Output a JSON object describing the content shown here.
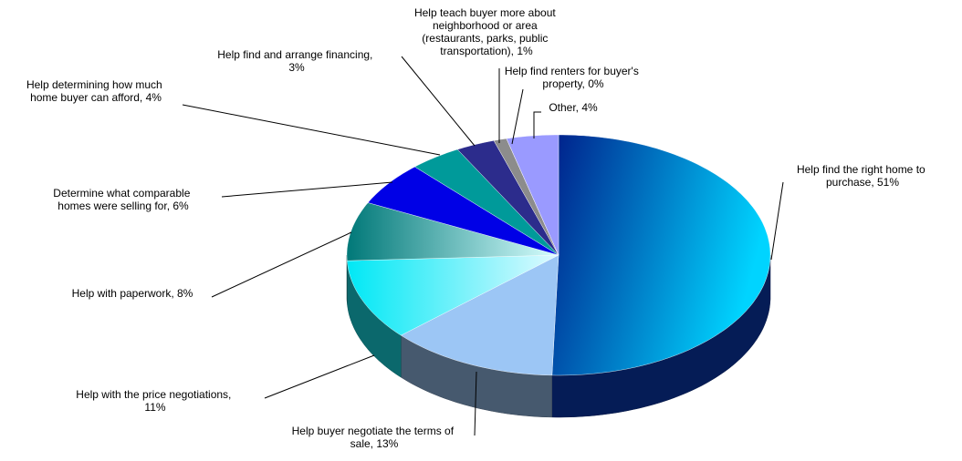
{
  "chart_data": {
    "type": "pie3d",
    "values": [
      51,
      13,
      11,
      8,
      6,
      4,
      3,
      1,
      0,
      4
    ],
    "value_labels": [
      "Help find the right home to purchase, 51%",
      "Help buyer negotiate the terms of sale, 13%",
      "Help with the price negotiations, 11%",
      "Help with paperwork, 8%",
      "Determine what comparable homes were selling for, 6%",
      "Help determining how much home buyer can afford, 4%",
      "Help find and arrange financing, 3%",
      "Help teach buyer more about neighborhood or area (restaurants, parks, public transportation), 1%",
      "Help find renters for buyer's property, 0%",
      "Other, 4%"
    ],
    "colors": [
      "#0a3fc0",
      "#9cc6f5",
      "#19e6f0",
      "#3fb8b8",
      "#0000e6",
      "#009a9a",
      "#2c2c8c",
      "#8c8c8c",
      "#b0b0b0",
      "#9a9aff"
    ]
  }
}
